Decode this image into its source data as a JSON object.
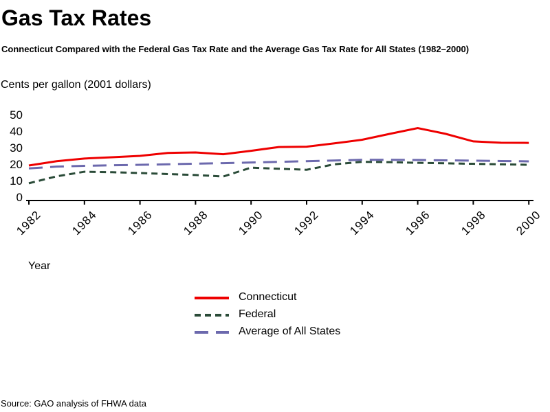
{
  "title": "Gas Tax Rates",
  "subtitle": "Connecticut Compared with the Federal Gas Tax Rate and the Average Gas Tax Rate for All States (1982–2000)",
  "source": "Source: GAO analysis of FHWA data",
  "colors": {
    "connecticut_line": "#EE0000",
    "federal_line": "#2A4B38",
    "average_line": "#6C69AD",
    "axis": "#000000"
  },
  "chart_data": {
    "type": "line",
    "title": "Gas Tax Rates",
    "subtitle": "Connecticut Compared with the Federal Gas Tax Rate and the Average Gas Tax Rate for All States (1982–2000)",
    "xlabel": "Year",
    "ylabel": "Cents per gallon (2001 dollars)",
    "ylim": [
      0,
      50
    ],
    "y_ticks": [
      0,
      10,
      20,
      30,
      40,
      50
    ],
    "x_ticks": [
      1982,
      1984,
      1986,
      1988,
      1990,
      1992,
      1994,
      1996,
      1998,
      2000
    ],
    "x": [
      1982,
      1983,
      1984,
      1985,
      1986,
      1987,
      1988,
      1989,
      1990,
      1991,
      1992,
      1993,
      1994,
      1995,
      1996,
      1997,
      1998,
      1999,
      2000
    ],
    "grid": false,
    "legend_position": "below-chart-center",
    "series": [
      {
        "name": "Connecticut",
        "color": "#EE0000",
        "line_style": "solid",
        "values": [
          19.6,
          22.2,
          23.8,
          24.6,
          25.4,
          27.2,
          27.5,
          26.4,
          28.5,
          30.8,
          31.0,
          33.0,
          35.2,
          38.8,
          42.3,
          38.8,
          34.2,
          33.4,
          33.3
        ]
      },
      {
        "name": "Federal",
        "color": "#2A4B38",
        "line_style": "dashed-short",
        "values": [
          8.8,
          13.0,
          15.8,
          15.5,
          15.0,
          14.4,
          13.8,
          12.9,
          18.3,
          17.6,
          17.0,
          20.3,
          21.8,
          21.6,
          21.2,
          20.9,
          20.6,
          20.3,
          20.0
        ]
      },
      {
        "name": "Average of All States",
        "color": "#6C69AD",
        "line_style": "dashed-long",
        "values": [
          17.8,
          18.9,
          19.4,
          19.7,
          20.0,
          20.3,
          20.7,
          21.0,
          21.4,
          21.8,
          22.2,
          22.6,
          23.0,
          23.0,
          22.9,
          22.7,
          22.5,
          22.3,
          22.1
        ]
      }
    ]
  }
}
